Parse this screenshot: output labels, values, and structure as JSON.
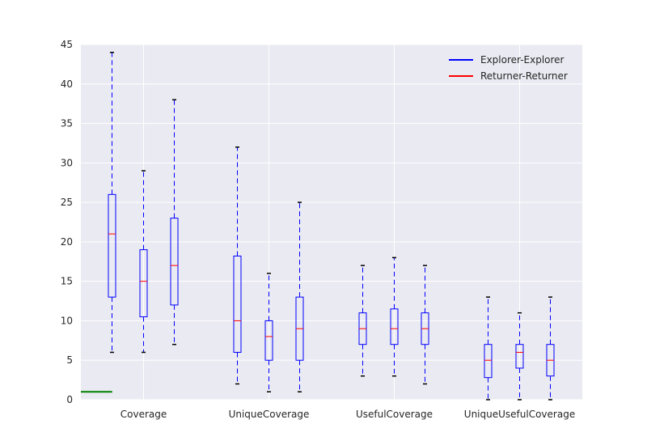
{
  "chart_data": {
    "type": "box",
    "categories": [
      "Coverage",
      "UniqueCoverage",
      "UsefulCoverage",
      "UniqueUsefulCoverage"
    ],
    "ylim": [
      0,
      45
    ],
    "yticks": [
      0,
      5,
      10,
      15,
      20,
      25,
      30,
      35,
      40,
      45
    ],
    "grid": true,
    "legend": {
      "placement": "top-right",
      "entries": [
        {
          "label": "Explorer-Explorer",
          "color": "#0000ff"
        },
        {
          "label": "Returner-Returner",
          "color": "#ff0000"
        }
      ]
    },
    "boxes": [
      {
        "category": "Coverage",
        "min": 6,
        "q1": 13,
        "median": 21,
        "q3": 26,
        "max": 44
      },
      {
        "category": "Coverage",
        "min": 6,
        "q1": 10.5,
        "median": 15,
        "q3": 19,
        "max": 29
      },
      {
        "category": "Coverage",
        "min": 7,
        "q1": 12,
        "median": 17,
        "q3": 23,
        "max": 38
      },
      {
        "category": "UniqueCoverage",
        "min": 2,
        "q1": 6,
        "median": 10,
        "q3": 18.2,
        "max": 32
      },
      {
        "category": "UniqueCoverage",
        "min": 1,
        "q1": 5,
        "median": 8,
        "q3": 10,
        "max": 16
      },
      {
        "category": "UniqueCoverage",
        "min": 1,
        "q1": 5,
        "median": 9,
        "q3": 13,
        "max": 25
      },
      {
        "category": "UsefulCoverage",
        "min": 3,
        "q1": 7,
        "median": 9,
        "q3": 11,
        "max": 17
      },
      {
        "category": "UsefulCoverage",
        "min": 3,
        "q1": 7,
        "median": 9,
        "q3": 11.5,
        "max": 18
      },
      {
        "category": "UsefulCoverage",
        "min": 2,
        "q1": 7,
        "median": 9,
        "q3": 11,
        "max": 17
      },
      {
        "category": "UniqueUsefulCoverage",
        "min": 0,
        "q1": 2.8,
        "median": 5,
        "q3": 7,
        "max": 13
      },
      {
        "category": "UniqueUsefulCoverage",
        "min": 0,
        "q1": 4,
        "median": 6,
        "q3": 7,
        "max": 11
      },
      {
        "category": "UniqueUsefulCoverage",
        "min": 0,
        "q1": 3,
        "median": 5,
        "q3": 7,
        "max": 13
      }
    ],
    "extra_line": {
      "x_start": 0,
      "x_end": 1,
      "y": 1,
      "color": "#008000"
    },
    "colors": {
      "box": "#0000ff",
      "median": "#ff0000",
      "extra": "#008000",
      "background": "#eaeaf2",
      "grid": "#ffffff"
    }
  }
}
